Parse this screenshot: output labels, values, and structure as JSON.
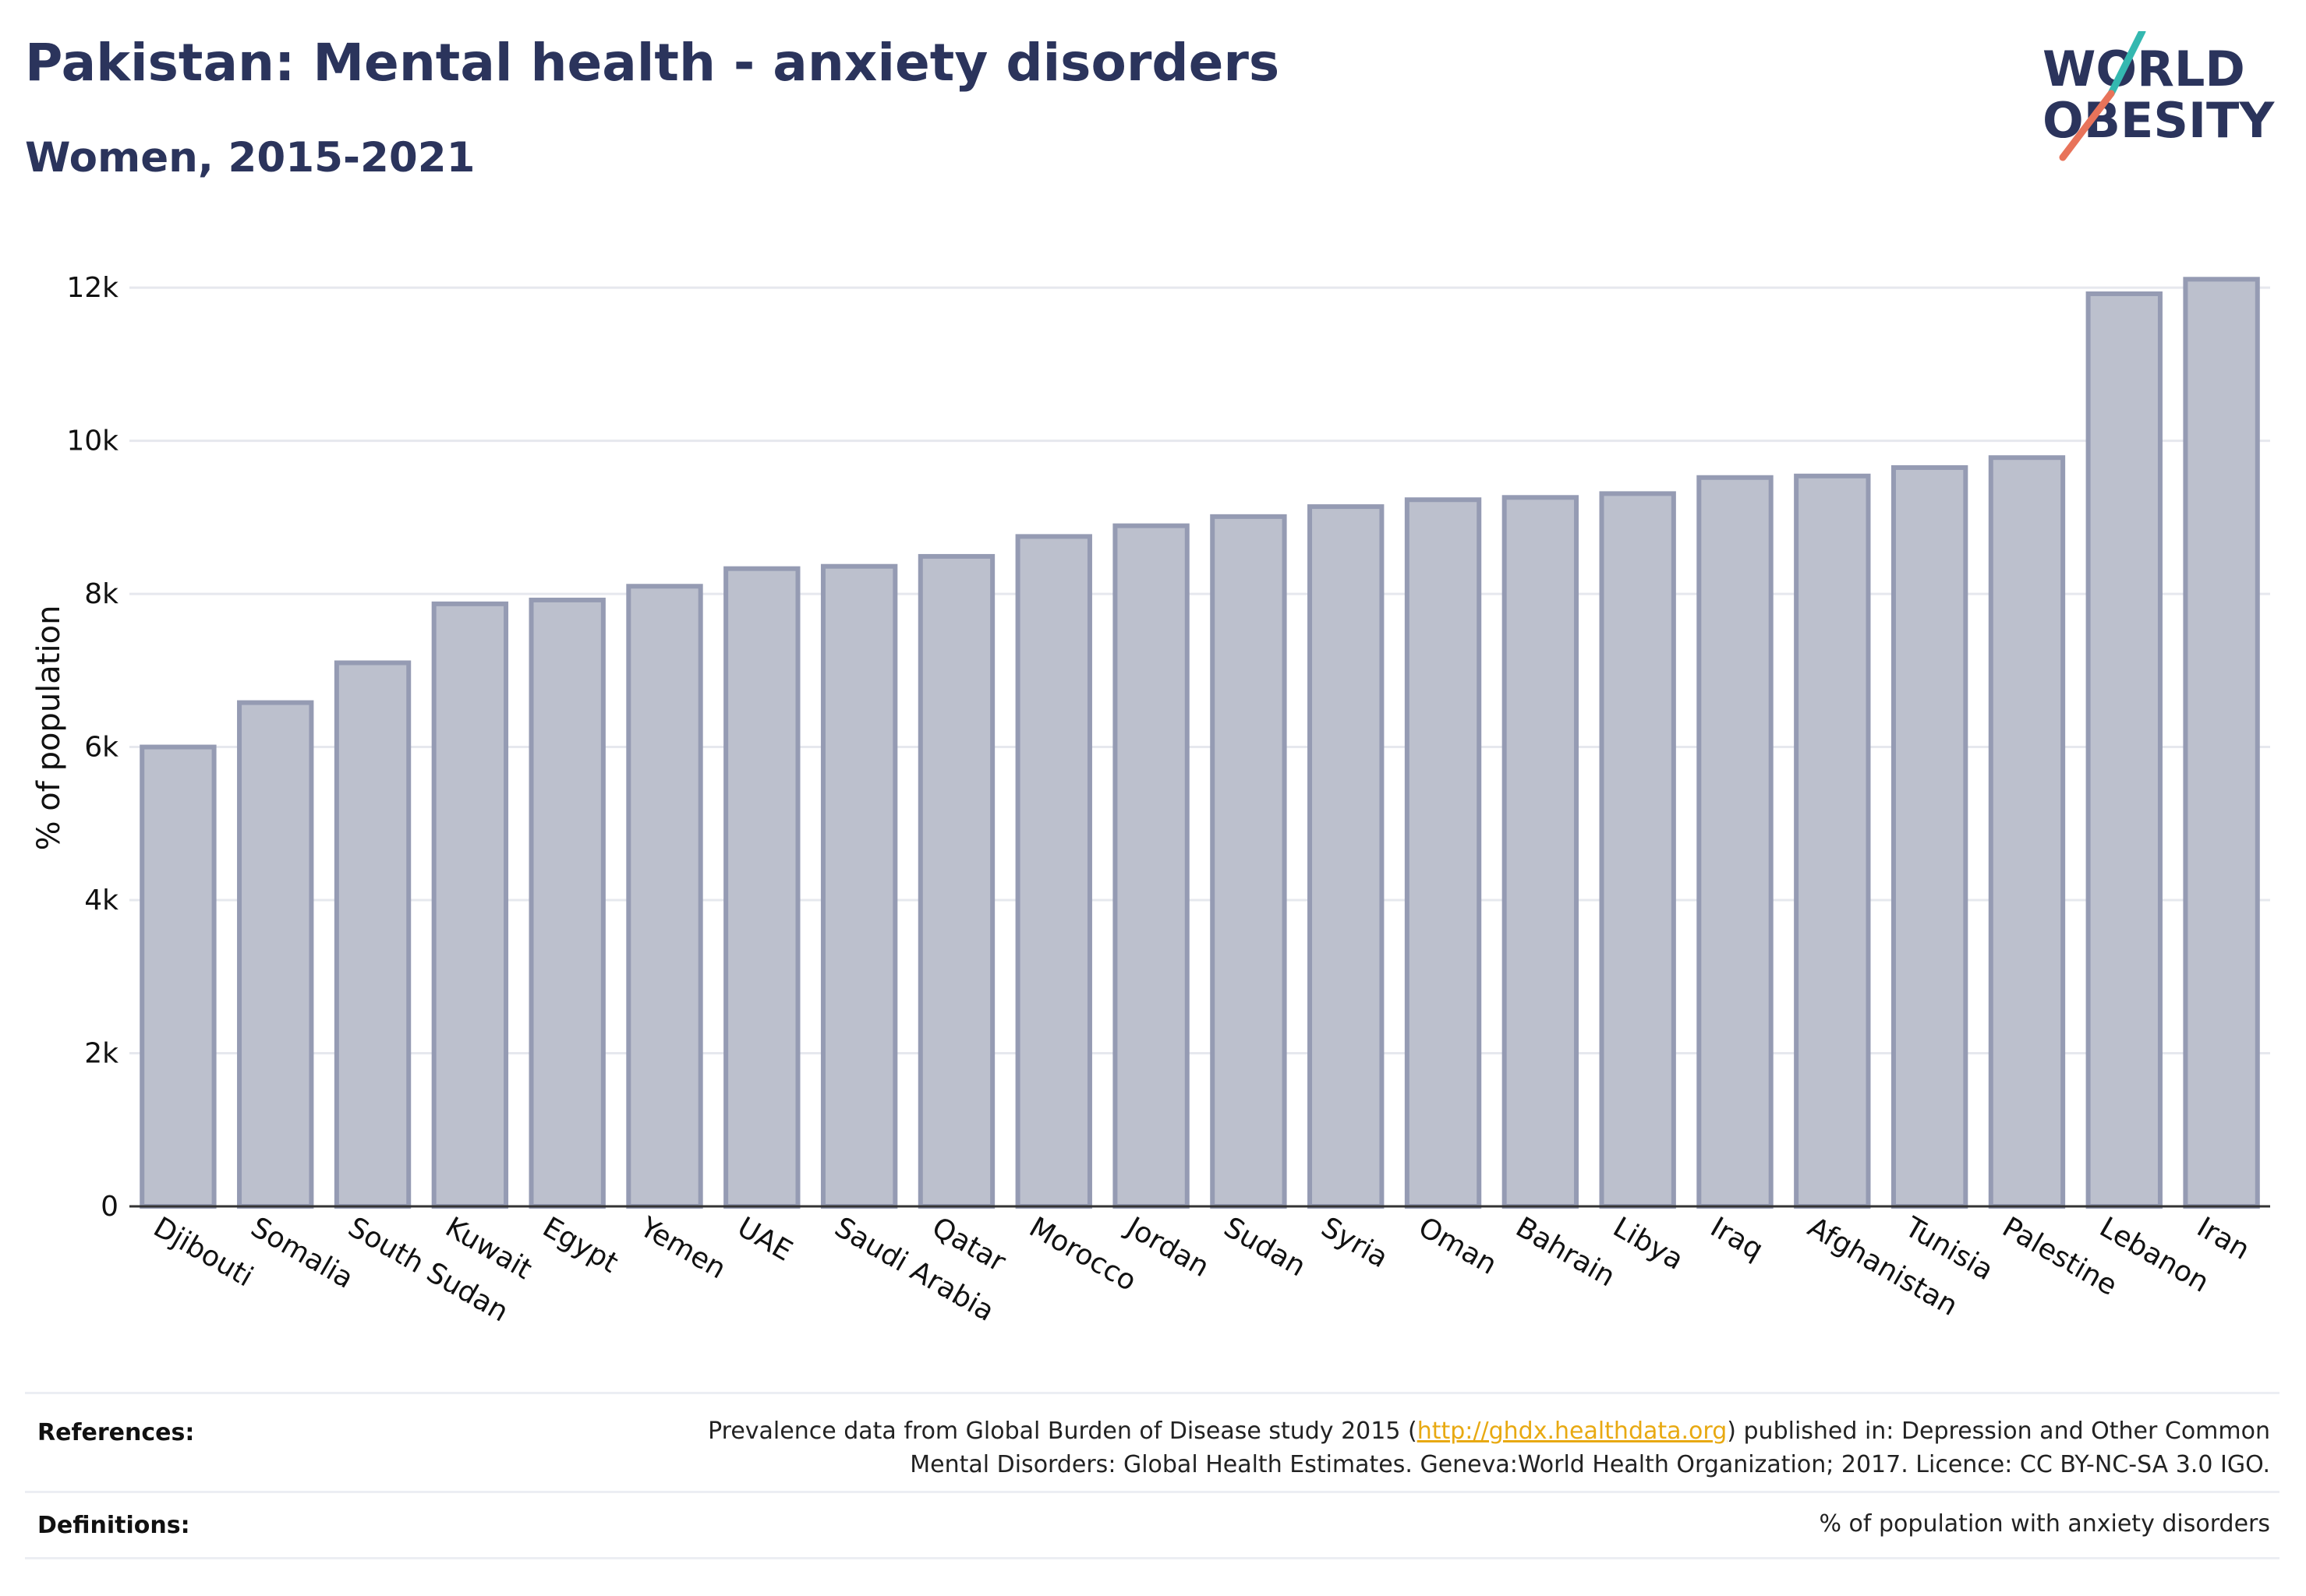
{
  "header": {
    "title": "Pakistan: Mental health - anxiety disorders",
    "subtitle": "Women, 2015-2021"
  },
  "logo": {
    "line1": "WORLD",
    "line2": "OBESITY"
  },
  "colors": {
    "bar_fill": "#bcc0cd",
    "bar_stroke": "#959bb3",
    "title": "#2b345c",
    "grid": "#e6e8ee",
    "link": "#e8a911",
    "logo_teal": "#34b8b0",
    "logo_coral": "#e8735a"
  },
  "chart_data": {
    "type": "bar",
    "ylabel": "% of population",
    "xlabel": "",
    "ylim": [
      0,
      12500
    ],
    "yticks": [
      0,
      2000,
      4000,
      6000,
      8000,
      10000,
      12000
    ],
    "ytick_labels": [
      "0",
      "2k",
      "4k",
      "6k",
      "8k",
      "10k",
      "12k"
    ],
    "grid": true,
    "categories": [
      "Djibouti",
      "Somalia",
      "South Sudan",
      "Kuwait",
      "Egypt",
      "Yemen",
      "UAE",
      "Saudi Arabia",
      "Qatar",
      "Morocco",
      "Jordan",
      "Sudan",
      "Syria",
      "Oman",
      "Bahrain",
      "Libya",
      "Iraq",
      "Afghanistan",
      "Tunisia",
      "Palestine",
      "Lebanon",
      "Iran"
    ],
    "values": [
      6000,
      6580,
      7100,
      7870,
      7920,
      8100,
      8330,
      8360,
      8490,
      8750,
      8890,
      9010,
      9140,
      9230,
      9260,
      9310,
      9520,
      9540,
      9650,
      9780,
      11920,
      12110
    ]
  },
  "references": {
    "label": "References:",
    "text_before": "Prevalence data from Global Burden of Disease study 2015 (",
    "link": "http://ghdx.healthdata.org",
    "text_after": ") published in: Depression and Other Common",
    "line2": "Mental Disorders: Global Health Estimates. Geneva:World Health Organization; 2017. Licence: CC BY-NC-SA 3.0 IGO."
  },
  "definitions": {
    "label": "Definitions:",
    "text": "% of population with anxiety disorders"
  }
}
